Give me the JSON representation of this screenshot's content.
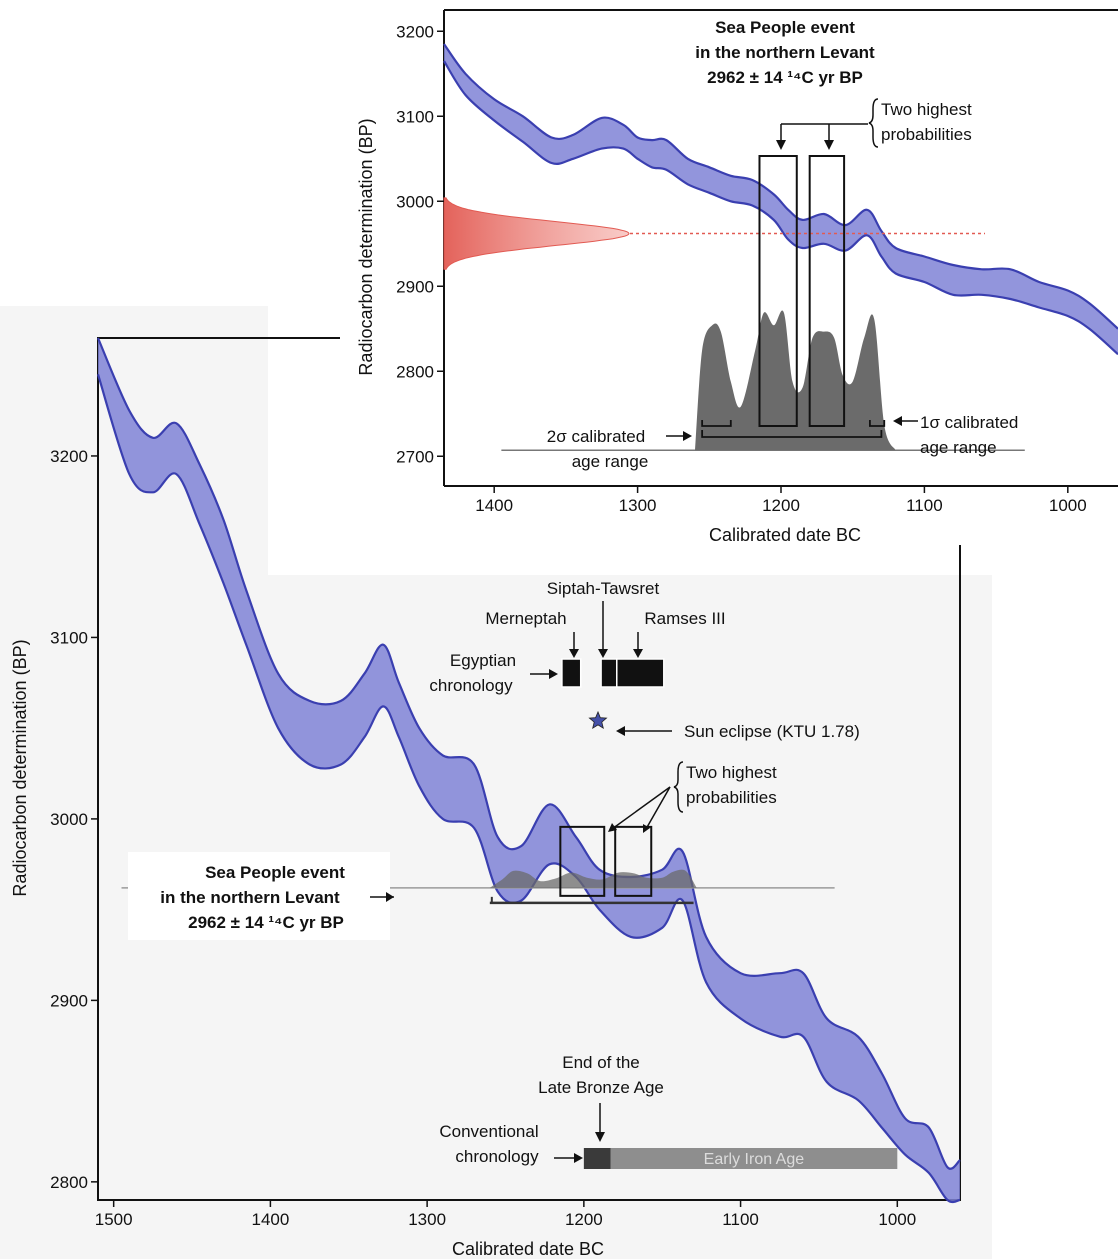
{
  "colors": {
    "band_fill": "#7f82d6",
    "band_stroke": "#3a3fb0",
    "hist_fill": "#6b6b6b",
    "radiocarbon_peak": "#e25a52",
    "early_iron_age": "#8e8e8e",
    "late_bronze_bar": "#3a3a3a",
    "egypt_bar": "#111111",
    "star": "#4450a8"
  },
  "chart_data": [
    {
      "id": "main",
      "type": "area",
      "xlabel": "Calibrated date BC",
      "ylabel": "Radiocarbon determination (BP)",
      "xlim": [
        1510,
        960
      ],
      "ylim": [
        2790,
        3265
      ],
      "x_ticks": [
        1500,
        1400,
        1300,
        1200,
        1100,
        1000
      ],
      "y_ticks": [
        3200,
        3100,
        3000,
        2900,
        2800
      ],
      "calibration_band": {
        "x": [
          1510,
          1490,
          1475,
          1460,
          1445,
          1430,
          1415,
          1395,
          1375,
          1355,
          1340,
          1328,
          1318,
          1305,
          1290,
          1270,
          1255,
          1240,
          1222,
          1205,
          1190,
          1170,
          1150,
          1137,
          1122,
          1100,
          1075,
          1060,
          1045,
          1025,
          1010,
          995,
          980,
          968,
          960
        ],
        "upper": [
          3265,
          3225,
          3210,
          3218,
          3195,
          3165,
          3125,
          3080,
          3065,
          3065,
          3080,
          3096,
          3075,
          3050,
          3035,
          3030,
          2990,
          2985,
          3008,
          2990,
          2972,
          2968,
          2972,
          2982,
          2935,
          2915,
          2915,
          2915,
          2890,
          2880,
          2860,
          2835,
          2830,
          2808,
          2812
        ],
        "lower": [
          3245,
          3190,
          3180,
          3190,
          3162,
          3130,
          3095,
          3050,
          3030,
          3030,
          3045,
          3062,
          3045,
          3018,
          3000,
          2995,
          2960,
          2955,
          2975,
          2968,
          2950,
          2935,
          2940,
          2955,
          2910,
          2890,
          2880,
          2880,
          2855,
          2845,
          2830,
          2815,
          2805,
          2790,
          2790
        ]
      },
      "probability_curve": {
        "x": [
          1260,
          1252,
          1245,
          1236,
          1228,
          1218,
          1208,
          1198,
          1188,
          1178,
          1168,
          1160,
          1150,
          1143,
          1135,
          1128
        ],
        "y": [
          0,
          0.5,
          1,
          0.85,
          0.4,
          0.55,
          0.9,
          0.6,
          0.5,
          0.9,
          0.85,
          0.6,
          0.6,
          0.95,
          1,
          0
        ]
      },
      "event_label": [
        "Sea People event",
        "in the northern Levant",
        "2962 ± 14 ¹⁴C yr BP"
      ],
      "event_value": 2962,
      "two_highest_label": [
        "Two highest",
        "probabilities"
      ],
      "highlight_ranges": [
        [
          1215,
          1187
        ],
        [
          1180,
          1157
        ]
      ],
      "calibrated_range": [
        1260,
        1130
      ],
      "egyptian_chronology": {
        "label": [
          "Egyptian",
          "chronology"
        ],
        "bars": [
          [
            1214,
            1202
          ],
          [
            1189,
            1179
          ],
          [
            1179,
            1149
          ]
        ],
        "reigns": [
          "Merneptah",
          "Siptah-Tawsret",
          "Ramses III"
        ]
      },
      "sun_eclipse": {
        "label": "Sun eclipse (KTU 1.78)",
        "x": 1191,
        "y": 3054
      },
      "conventional_chronology": {
        "label": [
          "Conventional",
          "chronology"
        ],
        "late_bronze_end_label": [
          "End of the",
          "Late Bronze Age"
        ],
        "late_bronze_end": [
          1200,
          1183
        ],
        "early_iron_age": {
          "label": "Early Iron Age",
          "range": [
            1183,
            1000
          ]
        }
      }
    },
    {
      "id": "inset",
      "type": "area",
      "title": [
        "Sea People event",
        "in the northern Levant",
        "2962 ± 14 ¹⁴C yr BP"
      ],
      "xlabel": "Calibrated date BC",
      "ylabel": "Radiocarbon determination (BP)",
      "xlim": [
        1435,
        965
      ],
      "ylim": [
        2665,
        3225
      ],
      "x_ticks": [
        1400,
        1300,
        1200,
        1100,
        1000
      ],
      "y_ticks": [
        3200,
        3100,
        3000,
        2900,
        2800,
        2700
      ],
      "calibration_band": {
        "x": [
          1435,
          1420,
          1400,
          1380,
          1360,
          1345,
          1325,
          1310,
          1300,
          1290,
          1280,
          1265,
          1250,
          1235,
          1220,
          1205,
          1195,
          1185,
          1170,
          1155,
          1140,
          1130,
          1120,
          1100,
          1080,
          1060,
          1040,
          1020,
          1000,
          985,
          965
        ],
        "upper": [
          3185,
          3150,
          3120,
          3100,
          3075,
          3078,
          3098,
          3090,
          3075,
          3072,
          3072,
          3050,
          3040,
          3030,
          3025,
          3008,
          2990,
          2978,
          2985,
          2972,
          2990,
          2965,
          2945,
          2935,
          2925,
          2920,
          2920,
          2905,
          2895,
          2880,
          2850
        ],
        "lower": [
          3165,
          3125,
          3095,
          3070,
          3045,
          3050,
          3062,
          3062,
          3050,
          3040,
          3037,
          3020,
          3010,
          3000,
          2995,
          2978,
          2955,
          2945,
          2950,
          2942,
          2960,
          2935,
          2915,
          2905,
          2890,
          2890,
          2885,
          2875,
          2865,
          2850,
          2820
        ]
      },
      "probability_curve": {
        "x": [
          1260,
          1255,
          1248,
          1242,
          1235,
          1228,
          1218,
          1212,
          1205,
          1198,
          1192,
          1185,
          1178,
          1170,
          1163,
          1157,
          1150,
          1142,
          1135,
          1128,
          1120
        ],
        "y": [
          0,
          0.8,
          1,
          0.95,
          0.55,
          0.35,
          0.8,
          1.1,
          1.0,
          1.1,
          0.55,
          0.5,
          0.9,
          0.95,
          0.9,
          0.6,
          0.55,
          0.9,
          1.05,
          0.2,
          0
        ]
      },
      "radiocarbon_peak": {
        "mean": 2962,
        "sigma": 14
      },
      "two_highest_label": [
        "Two highest",
        "probabilities"
      ],
      "highlight_ranges": [
        [
          1215,
          1189
        ],
        [
          1180,
          1156
        ]
      ],
      "two_sigma": {
        "label": [
          "2σ calibrated",
          "age range"
        ],
        "range": [
          1255,
          1130
        ]
      },
      "one_sigma": {
        "label": [
          "1σ calibrated",
          "age range"
        ],
        "ranges": [
          [
            1255,
            1235
          ],
          [
            1138,
            1128
          ]
        ]
      }
    }
  ]
}
